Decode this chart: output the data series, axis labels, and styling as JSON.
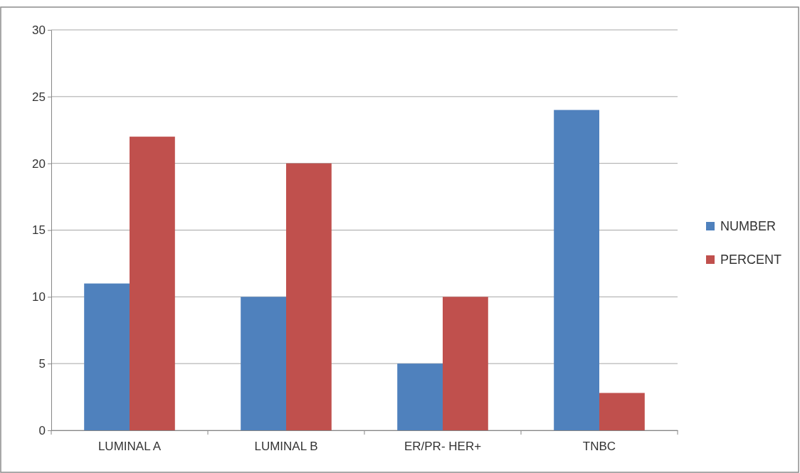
{
  "chart_data": {
    "type": "bar",
    "categories": [
      "LUMINAL A",
      "LUMINAL B",
      "ER/PR- HER+",
      "TNBC"
    ],
    "series": [
      {
        "name": "NUMBER",
        "color": "#4f81bd",
        "values": [
          11,
          10,
          5,
          24
        ]
      },
      {
        "name": "PERCENT",
        "color": "#c0504d",
        "values": [
          22,
          20,
          10,
          2.8
        ]
      }
    ],
    "ylim": [
      0,
      30
    ],
    "yticks": [
      0,
      5,
      10,
      15,
      20,
      25,
      30
    ],
    "grid": "y",
    "legend": "right"
  }
}
